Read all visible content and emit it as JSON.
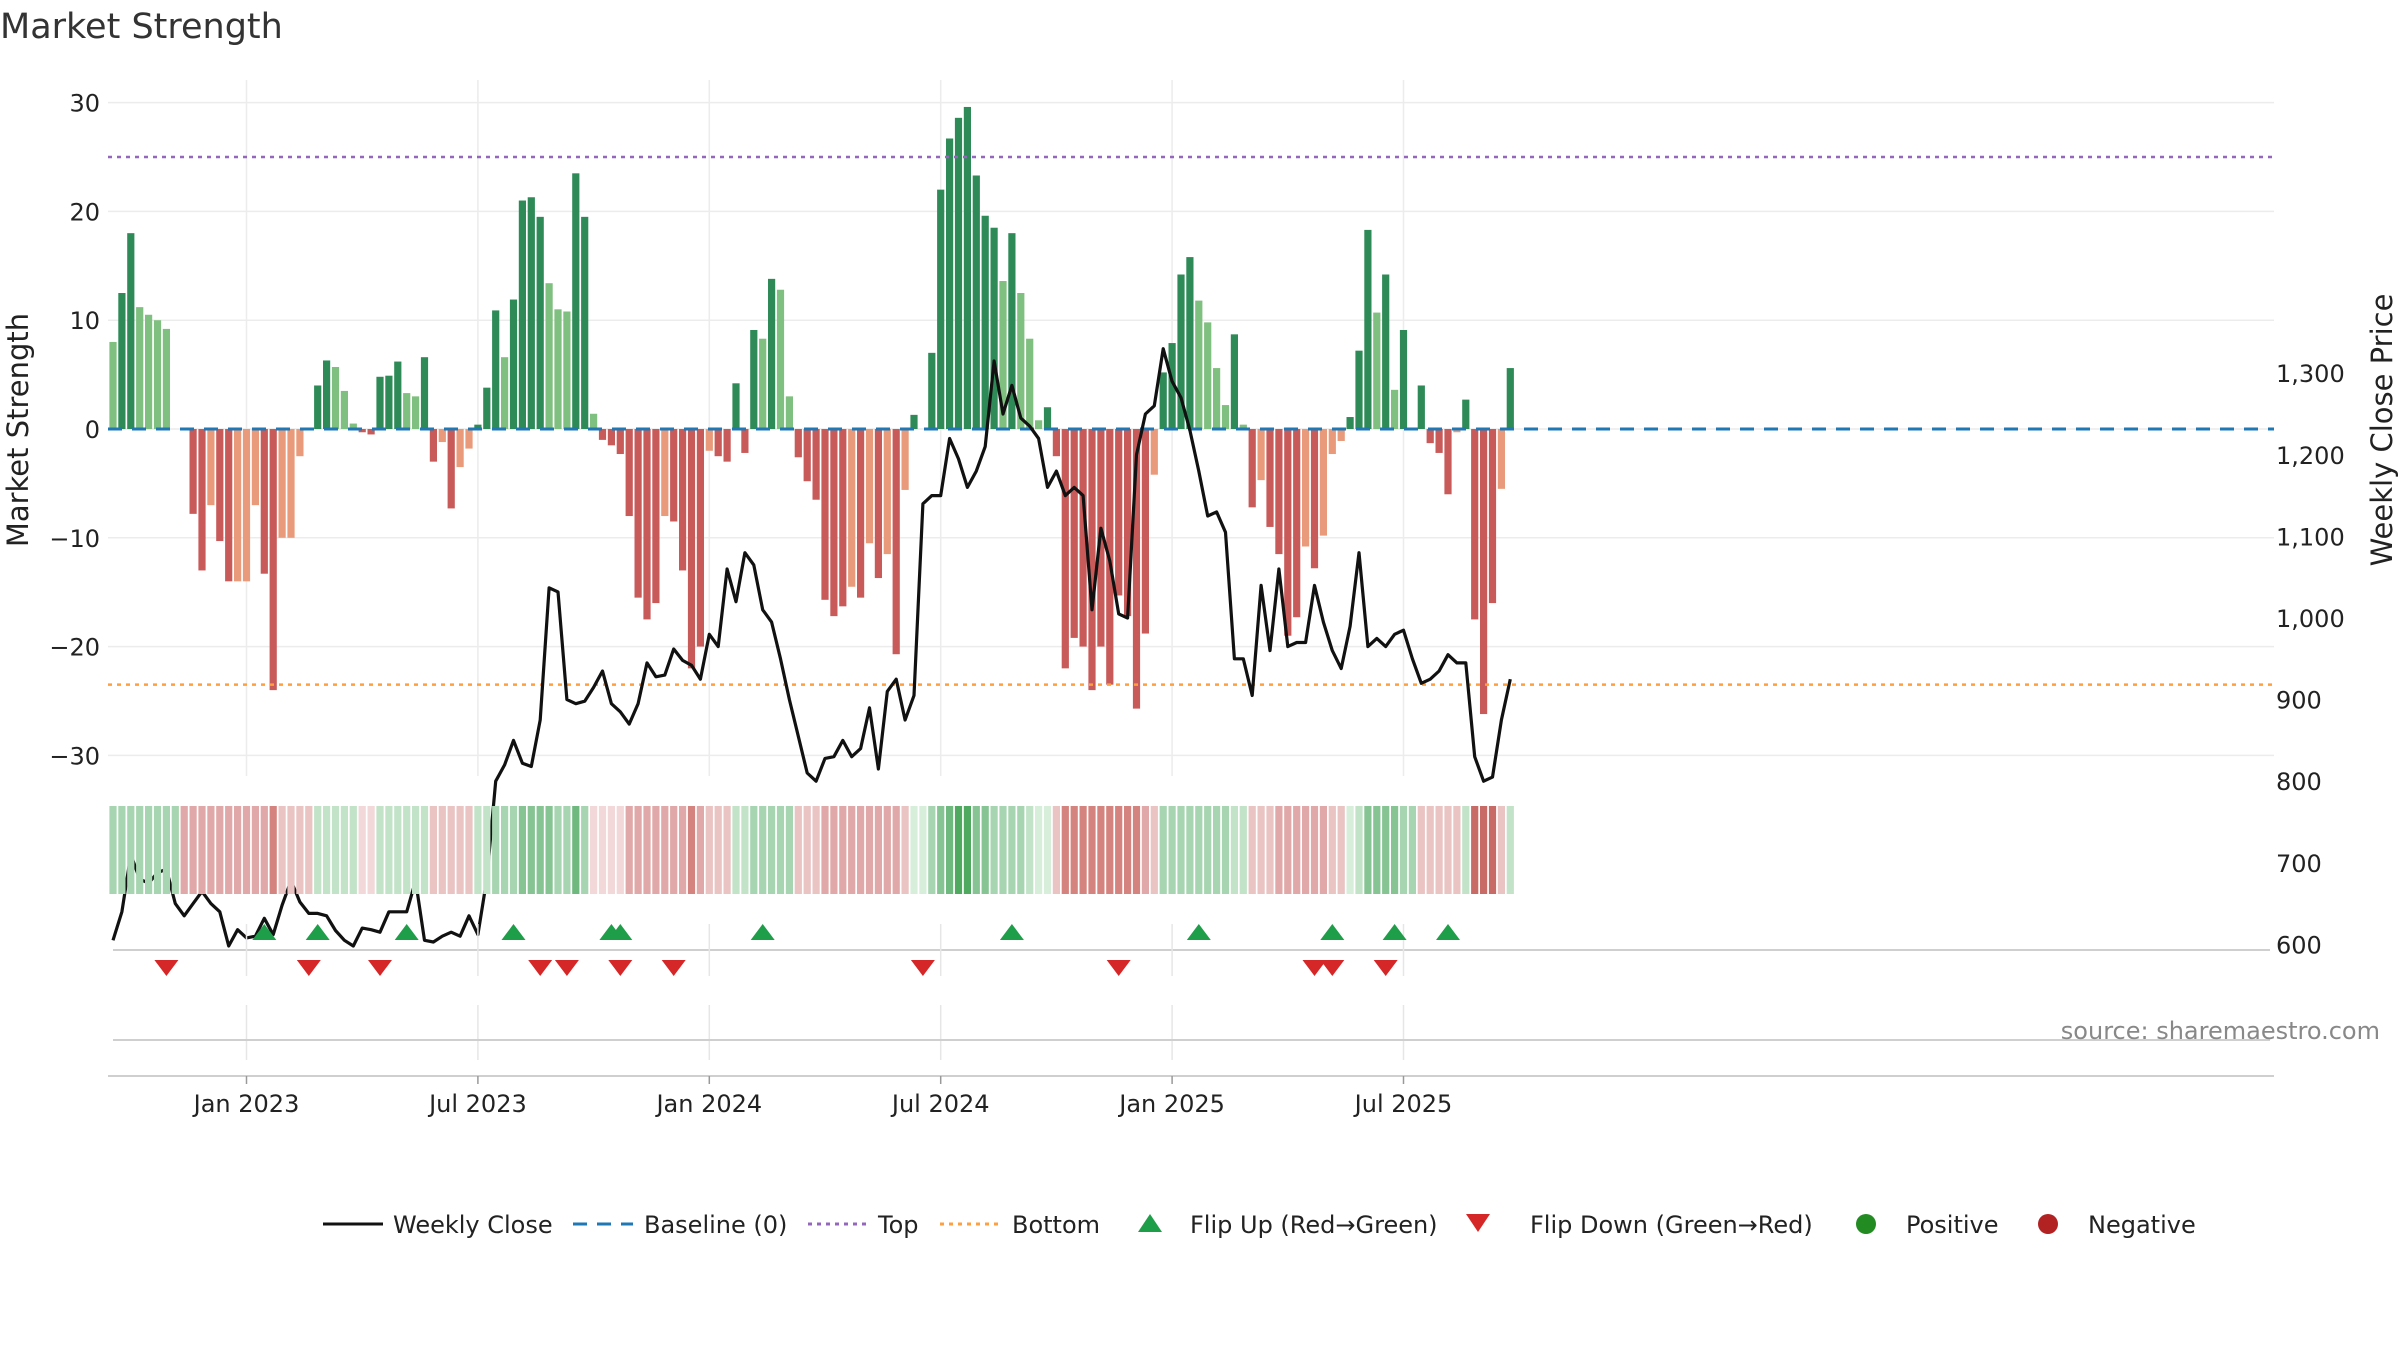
{
  "chart_data": {
    "type": "bar",
    "title": "Market Strength",
    "ylabel": "Market Strength",
    "y2label": "Weekly Close Price",
    "ylim": [
      -33,
      31
    ],
    "y2lim": [
      540,
      1360
    ],
    "yticks": [
      30,
      20,
      10,
      0,
      -10,
      -20,
      -30
    ],
    "ytick_labels": [
      "30",
      "20",
      "10",
      "0",
      "−10",
      "−20",
      "−30"
    ],
    "y2ticks": [
      1300,
      1200,
      1100,
      1000,
      900,
      800,
      700,
      600
    ],
    "y2tick_labels": [
      "1,300",
      "1,200",
      "1,100",
      "1,000",
      "900",
      "800",
      "700",
      "600"
    ],
    "xlabels": [
      "Jan 2023",
      "Jul 2023",
      "Jan 2024",
      "Jul 2024",
      "Jan 2025",
      "Jul 2025"
    ],
    "x_tick_weeks": [
      15,
      41,
      67,
      93,
      119,
      145
    ],
    "top_line": 25,
    "bottom_line": -23.5,
    "strength": [
      8,
      12.5,
      18,
      11.2,
      10.5,
      10,
      9.2,
      0,
      0,
      -7.8,
      -13,
      -7,
      -10.3,
      -14,
      -14,
      -14,
      -7,
      -13.3,
      -24,
      -10,
      -10,
      -2.5,
      0,
      4,
      6.3,
      5.7,
      3.5,
      0.5,
      -0.3,
      -0.5,
      4.8,
      4.9,
      6.2,
      3.3,
      3,
      6.6,
      -3,
      -1.2,
      -7.3,
      -3.5,
      -1.8,
      0.4,
      3.8,
      10.9,
      6.6,
      11.9,
      21,
      21.3,
      19.5,
      13.4,
      11,
      10.8,
      23.5,
      19.5,
      1.4,
      -1,
      -1.5,
      -2.3,
      -8,
      -15.5,
      -17.5,
      -16,
      -8,
      -8.5,
      -13,
      -22,
      -20,
      -2,
      -2.5,
      -3,
      4.2,
      -2.2,
      9.1,
      8.3,
      13.8,
      12.8,
      3,
      -2.6,
      -4.8,
      -6.5,
      -15.7,
      -17.2,
      -16.3,
      -14.5,
      -15.5,
      -10.5,
      -13.7,
      -11.5,
      -20.7,
      -5.6,
      1.3,
      0,
      7,
      22,
      26.7,
      28.6,
      29.6,
      23.3,
      19.6,
      18.5,
      13.6,
      18,
      12.5,
      8.3,
      0.8,
      2,
      -2.5,
      -22,
      -19.2,
      -20,
      -24,
      -20,
      -23.5,
      -15.3,
      -17.2,
      -25.7,
      -18.8,
      -4.2,
      5.2,
      7.9,
      14.2,
      15.8,
      11.8,
      9.8,
      5.6,
      2.2,
      8.7,
      0.4,
      -7.2,
      -4.7,
      -9,
      -11.5,
      -19,
      -17.3,
      -10.8,
      -12.8,
      -9.8,
      -2.3,
      -1.1,
      1.1,
      7.2,
      18.3,
      10.7,
      14.2,
      3.6,
      9.1,
      0,
      4,
      -1.3,
      -2.2,
      -6,
      -0.3,
      2.7,
      -17.5,
      -26.2,
      -16,
      -5.5,
      5.6
    ],
    "weekly_close": [
      605,
      640,
      710,
      680,
      675,
      688,
      692,
      650,
      635,
      650,
      665,
      650,
      640,
      598,
      618,
      608,
      610,
      632,
      612,
      648,
      678,
      652,
      638,
      638,
      635,
      617,
      605,
      598,
      620,
      618,
      615,
      640,
      640,
      640,
      678,
      605,
      603,
      610,
      615,
      610,
      635,
      612,
      680,
      800,
      820,
      850,
      822,
      818,
      875,
      1037,
      1032,
      900,
      895,
      898,
      915,
      935,
      895,
      885,
      870,
      895,
      945,
      928,
      930,
      962,
      948,
      942,
      925,
      980,
      965,
      1060,
      1020,
      1080,
      1065,
      1010,
      995,
      950,
      900,
      855,
      810,
      800,
      828,
      830,
      850,
      830,
      840,
      890,
      815,
      910,
      925,
      875,
      905,
      1140,
      1150,
      1150,
      1220,
      1195,
      1160,
      1180,
      1210,
      1315,
      1250,
      1285,
      1245,
      1235,
      1220,
      1160,
      1180,
      1150,
      1160,
      1150,
      1010,
      1110,
      1070,
      1005,
      1000,
      1200,
      1250,
      1260,
      1330,
      1290,
      1270,
      1230,
      1180,
      1125,
      1130,
      1105,
      950,
      950,
      905,
      1040,
      960,
      1060,
      965,
      970,
      970,
      1040,
      995,
      960,
      938,
      990,
      1080,
      965,
      975,
      965,
      980,
      985,
      950,
      920,
      925,
      935,
      955,
      945,
      945,
      830,
      800,
      805,
      875,
      925
    ],
    "row_colors": [
      "#a8d5b1",
      "#a8d5b1",
      "#a8d5b1",
      "#a8d5b1",
      "#a8d5b1",
      "#a8d5b1",
      "#a8d5b1",
      "#a8d5b1",
      "#e0a8a8",
      "#e0a8a8",
      "#e0a8a8",
      "#e0a8a8",
      "#e0a8a8",
      "#e0a8a8",
      "#e0a8a8",
      "#e0a8a8",
      "#e0a8a8",
      "#e0a8a8",
      "#d4837e",
      "#eac3c3",
      "#eac3c3",
      "#eac3c3",
      "#eac3c3",
      "#c3e3c9",
      "#c3e3c9",
      "#c3e3c9",
      "#c3e3c9",
      "#c3e3c9",
      "#f2d8d8",
      "#f2d8d8",
      "#c3e3c9",
      "#c3e3c9",
      "#c3e3c9",
      "#c3e3c9",
      "#c3e3c9",
      "#c3e3c9",
      "#eac3c3",
      "#eac3c3",
      "#eac3c3",
      "#eac3c3",
      "#eac3c3",
      "#c3e3c9",
      "#c3e3c9",
      "#a8d5b1",
      "#a8d5b1",
      "#a8d5b1",
      "#86c493",
      "#86c493",
      "#86c493",
      "#86c493",
      "#a8d5b1",
      "#a8d5b1",
      "#6fb87e",
      "#a8d5b1",
      "#f2d8d8",
      "#f2d8d8",
      "#f2d8d8",
      "#f2d8d8",
      "#e0a8a8",
      "#e0a8a8",
      "#e0a8a8",
      "#e0a8a8",
      "#e0a8a8",
      "#e0a8a8",
      "#e0a8a8",
      "#d4837e",
      "#e0a8a8",
      "#eac3c3",
      "#eac3c3",
      "#eac3c3",
      "#c3e3c9",
      "#c3e3c9",
      "#a8d5b1",
      "#a8d5b1",
      "#a8d5b1",
      "#a8d5b1",
      "#a8d5b1",
      "#eac3c3",
      "#eac3c3",
      "#eac3c3",
      "#e0a8a8",
      "#e0a8a8",
      "#e0a8a8",
      "#e0a8a8",
      "#e0a8a8",
      "#e0a8a8",
      "#e0a8a8",
      "#e0a8a8",
      "#e0a8a8",
      "#eac3c3",
      "#d7eedb",
      "#d7eedb",
      "#a8d5b1",
      "#86c493",
      "#6fb87e",
      "#4fa95f",
      "#4fa95f",
      "#86c493",
      "#86c493",
      "#a8d5b1",
      "#a8d5b1",
      "#a8d5b1",
      "#a8d5b1",
      "#c3e3c9",
      "#d7eedb",
      "#d7eedb",
      "#eac3c3",
      "#d4837e",
      "#d4837e",
      "#d4837e",
      "#d4837e",
      "#d4837e",
      "#d4837e",
      "#d4837e",
      "#d4837e",
      "#d4837e",
      "#e0a8a8",
      "#eac3c3",
      "#a8d5b1",
      "#a8d5b1",
      "#a8d5b1",
      "#a8d5b1",
      "#a8d5b1",
      "#a8d5b1",
      "#a8d5b1",
      "#a8d5b1",
      "#c3e3c9",
      "#c3e3c9",
      "#eac3c3",
      "#eac3c3",
      "#eac3c3",
      "#e0a8a8",
      "#e0a8a8",
      "#e0a8a8",
      "#e0a8a8",
      "#e0a8a8",
      "#e0a8a8",
      "#eac3c3",
      "#eac3c3",
      "#d7eedb",
      "#c3e3c9",
      "#86c493",
      "#86c493",
      "#86c493",
      "#86c493",
      "#a8d5b1",
      "#a8d5b1",
      "#eac3c3",
      "#eac3c3",
      "#eac3c3",
      "#eac3c3",
      "#eac3c3",
      "#c3e3c9",
      "#c86a66",
      "#c86a66",
      "#c86a66",
      "#eac3c3",
      "#c3e3c9"
    ],
    "flip_up_weeks": [
      17,
      23,
      33,
      45,
      56,
      57,
      73,
      101,
      122,
      137,
      144,
      150
    ],
    "flip_down_weeks": [
      6,
      22,
      30,
      48,
      51,
      57,
      63,
      91,
      113,
      135,
      137,
      143
    ],
    "colors": {
      "pos_dark": "#2e8b57",
      "pos_light": "#7fbf7f",
      "neg_dark": "#c85a5a",
      "neg_light": "#e89a7a",
      "line": "#111111",
      "baseline": "#1f77b4",
      "top": "#9467bd",
      "bottom": "#ff9f40",
      "flip_up": "#1f9e4a",
      "flip_down": "#d62728",
      "positive_dot": "#228b22",
      "negative_dot": "#b22222"
    },
    "legend": {
      "weekly_close": "Weekly Close",
      "baseline": "Baseline (0)",
      "top": "Top",
      "bottom": "Bottom",
      "flip_up": "Flip Up (Red→Green)",
      "flip_down": "Flip Down (Green→Red)",
      "positive": "Positive",
      "negative": "Negative"
    },
    "source": "source: sharemaestro.com"
  }
}
